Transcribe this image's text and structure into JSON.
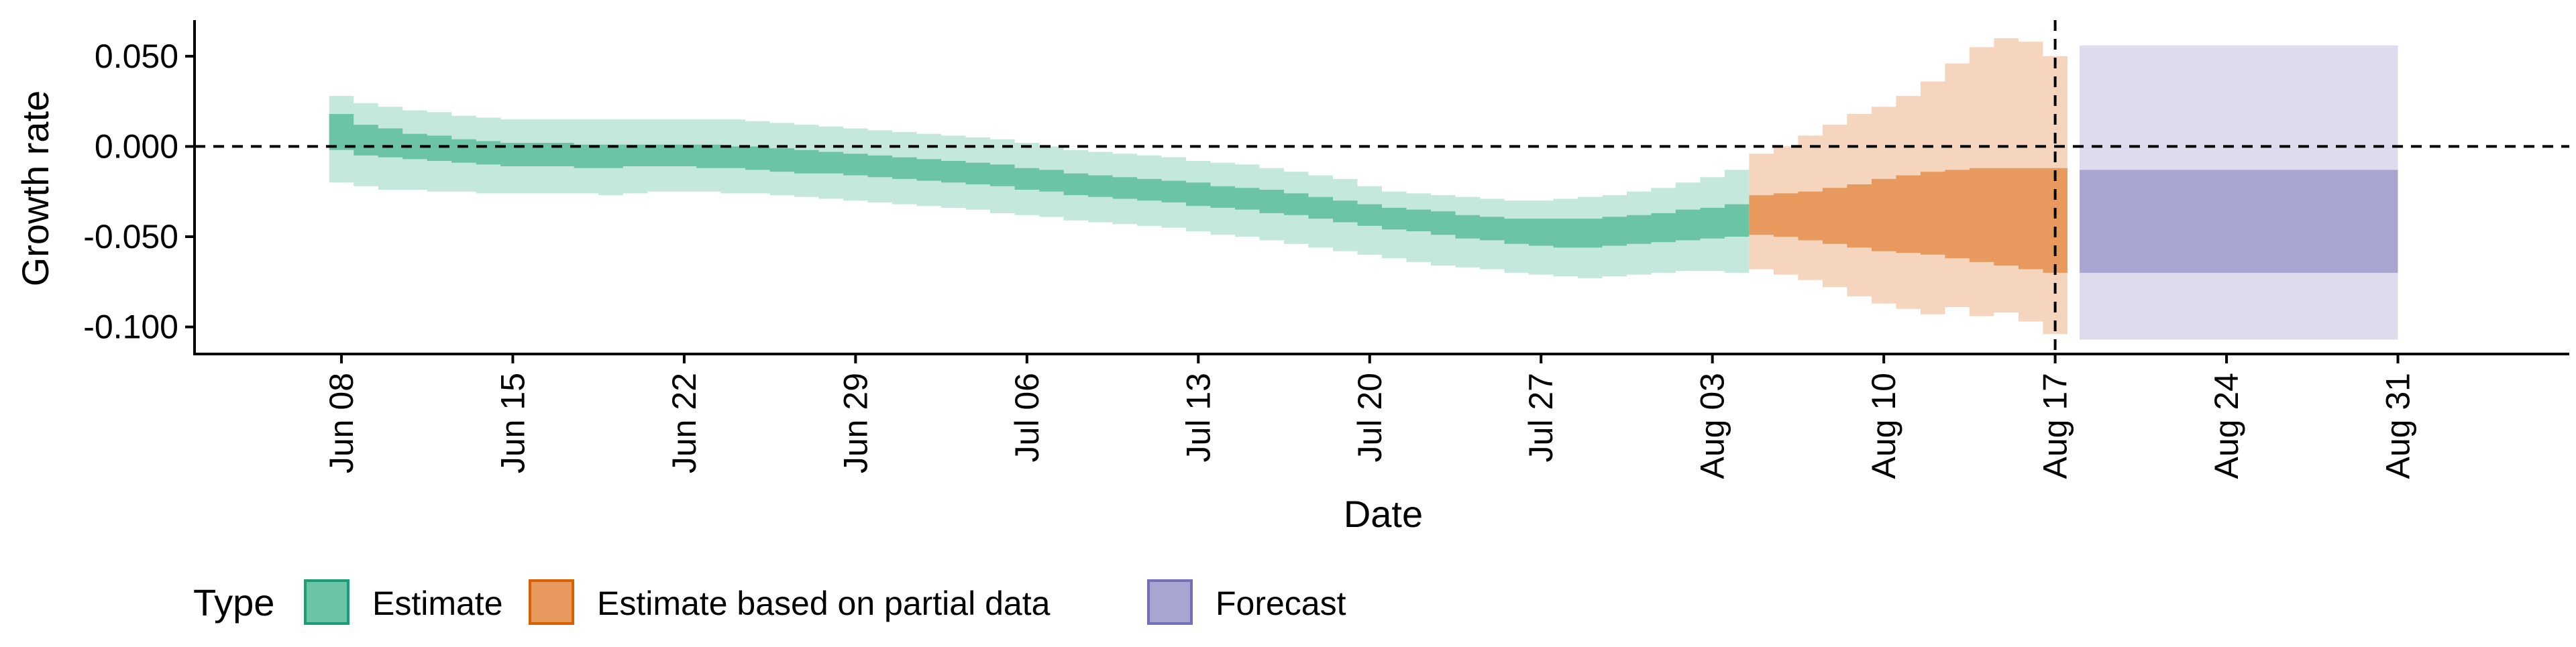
{
  "chart_data": {
    "type": "area",
    "title": "",
    "xlabel": "Date",
    "ylabel": "Growth rate",
    "x_range": [
      "2020-06-02",
      "2020-09-07"
    ],
    "ylim": [
      -0.115,
      0.07
    ],
    "y_ticks": [
      0.05,
      0.0,
      -0.05,
      -0.1
    ],
    "y_tick_labels": [
      "0.050",
      "0.000",
      "-0.050",
      "-0.100"
    ],
    "x_ticks": [
      "2020-06-08",
      "2020-06-15",
      "2020-06-22",
      "2020-06-29",
      "2020-07-06",
      "2020-07-13",
      "2020-07-20",
      "2020-07-27",
      "2020-08-03",
      "2020-08-10",
      "2020-08-17",
      "2020-08-24",
      "2020-08-31"
    ],
    "x_tick_labels": [
      "Jun 08",
      "Jun 15",
      "Jun 22",
      "Jun 29",
      "Jul 06",
      "Jul 13",
      "Jul 20",
      "Jul 27",
      "Aug 03",
      "Aug 10",
      "Aug 17",
      "Aug 24",
      "Aug 31"
    ],
    "reference_lines": {
      "horizontal_y": 0.0,
      "vertical_date": "2020-08-17"
    },
    "grid": false,
    "legend": {
      "title": "Type",
      "position": "bottom-left",
      "entries": [
        {
          "label": "Estimate",
          "color": "#66c2a5",
          "fill": "#6cc4a6",
          "border": "#1b9e77"
        },
        {
          "label": "Estimate based on partial data",
          "color": "#e89a5e",
          "fill": "#e89a5e",
          "border": "#d95f02"
        },
        {
          "label": "Forecast",
          "color": "#a8a5d0",
          "fill": "#a8a5d0",
          "border": "#7570b3"
        }
      ]
    },
    "series": [
      {
        "name": "Estimate",
        "color_dark": "#6cc4a6",
        "color_light": "#c4e8dc",
        "points": [
          {
            "x": "2020-06-08",
            "lo90": -0.02,
            "lo50": -0.002,
            "hi50": 0.018,
            "hi90": 0.028
          },
          {
            "x": "2020-06-09",
            "lo90": -0.022,
            "lo50": -0.005,
            "hi50": 0.012,
            "hi90": 0.024
          },
          {
            "x": "2020-06-10",
            "lo90": -0.024,
            "lo50": -0.006,
            "hi50": 0.01,
            "hi90": 0.022
          },
          {
            "x": "2020-06-11",
            "lo90": -0.024,
            "lo50": -0.007,
            "hi50": 0.007,
            "hi90": 0.02
          },
          {
            "x": "2020-06-12",
            "lo90": -0.025,
            "lo50": -0.008,
            "hi50": 0.006,
            "hi90": 0.019
          },
          {
            "x": "2020-06-13",
            "lo90": -0.025,
            "lo50": -0.009,
            "hi50": 0.004,
            "hi90": 0.017
          },
          {
            "x": "2020-06-14",
            "lo90": -0.026,
            "lo50": -0.01,
            "hi50": 0.003,
            "hi90": 0.016
          },
          {
            "x": "2020-06-15",
            "lo90": -0.026,
            "lo50": -0.011,
            "hi50": 0.002,
            "hi90": 0.015
          },
          {
            "x": "2020-06-16",
            "lo90": -0.026,
            "lo50": -0.011,
            "hi50": 0.002,
            "hi90": 0.015
          },
          {
            "x": "2020-06-17",
            "lo90": -0.026,
            "lo50": -0.011,
            "hi50": 0.002,
            "hi90": 0.015
          },
          {
            "x": "2020-06-18",
            "lo90": -0.026,
            "lo50": -0.012,
            "hi50": 0.001,
            "hi90": 0.015
          },
          {
            "x": "2020-06-19",
            "lo90": -0.027,
            "lo50": -0.012,
            "hi50": 0.001,
            "hi90": 0.015
          },
          {
            "x": "2020-06-20",
            "lo90": -0.026,
            "lo50": -0.011,
            "hi50": 0.001,
            "hi90": 0.015
          },
          {
            "x": "2020-06-21",
            "lo90": -0.025,
            "lo50": -0.011,
            "hi50": 0.001,
            "hi90": 0.015
          },
          {
            "x": "2020-06-22",
            "lo90": -0.025,
            "lo50": -0.011,
            "hi50": 0.001,
            "hi90": 0.015
          },
          {
            "x": "2020-06-23",
            "lo90": -0.025,
            "lo50": -0.012,
            "hi50": 0.001,
            "hi90": 0.015
          },
          {
            "x": "2020-06-24",
            "lo90": -0.026,
            "lo50": -0.012,
            "hi50": 0.0,
            "hi90": 0.015
          },
          {
            "x": "2020-06-25",
            "lo90": -0.026,
            "lo50": -0.013,
            "hi50": 0.0,
            "hi90": 0.014
          },
          {
            "x": "2020-06-26",
            "lo90": -0.027,
            "lo50": -0.014,
            "hi50": -0.001,
            "hi90": 0.013
          },
          {
            "x": "2020-06-27",
            "lo90": -0.028,
            "lo50": -0.015,
            "hi50": -0.002,
            "hi90": 0.012
          },
          {
            "x": "2020-06-28",
            "lo90": -0.029,
            "lo50": -0.015,
            "hi50": -0.003,
            "hi90": 0.011
          },
          {
            "x": "2020-06-29",
            "lo90": -0.03,
            "lo50": -0.016,
            "hi50": -0.004,
            "hi90": 0.01
          },
          {
            "x": "2020-06-30",
            "lo90": -0.031,
            "lo50": -0.017,
            "hi50": -0.005,
            "hi90": 0.009
          },
          {
            "x": "2020-07-01",
            "lo90": -0.032,
            "lo50": -0.018,
            "hi50": -0.006,
            "hi90": 0.008
          },
          {
            "x": "2020-07-02",
            "lo90": -0.033,
            "lo50": -0.019,
            "hi50": -0.007,
            "hi90": 0.007
          },
          {
            "x": "2020-07-03",
            "lo90": -0.034,
            "lo50": -0.02,
            "hi50": -0.008,
            "hi90": 0.006
          },
          {
            "x": "2020-07-04",
            "lo90": -0.035,
            "lo50": -0.021,
            "hi50": -0.009,
            "hi90": 0.005
          },
          {
            "x": "2020-07-05",
            "lo90": -0.037,
            "lo50": -0.022,
            "hi50": -0.01,
            "hi90": 0.004
          },
          {
            "x": "2020-07-06",
            "lo90": -0.038,
            "lo50": -0.024,
            "hi50": -0.012,
            "hi90": 0.002
          },
          {
            "x": "2020-07-07",
            "lo90": -0.039,
            "lo50": -0.025,
            "hi50": -0.013,
            "hi90": 0.0
          },
          {
            "x": "2020-07-08",
            "lo90": -0.041,
            "lo50": -0.027,
            "hi50": -0.015,
            "hi90": -0.002
          },
          {
            "x": "2020-07-09",
            "lo90": -0.042,
            "lo50": -0.028,
            "hi50": -0.016,
            "hi90": -0.003
          },
          {
            "x": "2020-07-10",
            "lo90": -0.043,
            "lo50": -0.029,
            "hi50": -0.017,
            "hi90": -0.004
          },
          {
            "x": "2020-07-11",
            "lo90": -0.044,
            "lo50": -0.03,
            "hi50": -0.018,
            "hi90": -0.005
          },
          {
            "x": "2020-07-12",
            "lo90": -0.045,
            "lo50": -0.031,
            "hi50": -0.019,
            "hi90": -0.006
          },
          {
            "x": "2020-07-13",
            "lo90": -0.047,
            "lo50": -0.033,
            "hi50": -0.02,
            "hi90": -0.008
          },
          {
            "x": "2020-07-14",
            "lo90": -0.049,
            "lo50": -0.034,
            "hi50": -0.022,
            "hi90": -0.009
          },
          {
            "x": "2020-07-15",
            "lo90": -0.05,
            "lo50": -0.035,
            "hi50": -0.023,
            "hi90": -0.01
          },
          {
            "x": "2020-07-16",
            "lo90": -0.052,
            "lo50": -0.037,
            "hi50": -0.024,
            "hi90": -0.012
          },
          {
            "x": "2020-07-17",
            "lo90": -0.054,
            "lo50": -0.038,
            "hi50": -0.026,
            "hi90": -0.014
          },
          {
            "x": "2020-07-18",
            "lo90": -0.056,
            "lo50": -0.04,
            "hi50": -0.028,
            "hi90": -0.016
          },
          {
            "x": "2020-07-19",
            "lo90": -0.058,
            "lo50": -0.042,
            "hi50": -0.03,
            "hi90": -0.018
          },
          {
            "x": "2020-07-20",
            "lo90": -0.06,
            "lo50": -0.044,
            "hi50": -0.032,
            "hi90": -0.022
          },
          {
            "x": "2020-07-21",
            "lo90": -0.062,
            "lo50": -0.046,
            "hi50": -0.034,
            "hi90": -0.025
          },
          {
            "x": "2020-07-22",
            "lo90": -0.064,
            "lo50": -0.047,
            "hi50": -0.035,
            "hi90": -0.026
          },
          {
            "x": "2020-07-23",
            "lo90": -0.066,
            "lo50": -0.049,
            "hi50": -0.036,
            "hi90": -0.027
          },
          {
            "x": "2020-07-24",
            "lo90": -0.067,
            "lo50": -0.051,
            "hi50": -0.038,
            "hi90": -0.028
          },
          {
            "x": "2020-07-25",
            "lo90": -0.068,
            "lo50": -0.052,
            "hi50": -0.039,
            "hi90": -0.029
          },
          {
            "x": "2020-07-26",
            "lo90": -0.07,
            "lo50": -0.054,
            "hi50": -0.04,
            "hi90": -0.03
          },
          {
            "x": "2020-07-27",
            "lo90": -0.071,
            "lo50": -0.055,
            "hi50": -0.04,
            "hi90": -0.03
          },
          {
            "x": "2020-07-28",
            "lo90": -0.072,
            "lo50": -0.056,
            "hi50": -0.04,
            "hi90": -0.029
          },
          {
            "x": "2020-07-29",
            "lo90": -0.073,
            "lo50": -0.056,
            "hi50": -0.04,
            "hi90": -0.028
          },
          {
            "x": "2020-07-30",
            "lo90": -0.072,
            "lo50": -0.055,
            "hi50": -0.039,
            "hi90": -0.027
          },
          {
            "x": "2020-07-31",
            "lo90": -0.071,
            "lo50": -0.054,
            "hi50": -0.038,
            "hi90": -0.025
          },
          {
            "x": "2020-08-01",
            "lo90": -0.07,
            "lo50": -0.053,
            "hi50": -0.037,
            "hi90": -0.023
          },
          {
            "x": "2020-08-02",
            "lo90": -0.069,
            "lo50": -0.052,
            "hi50": -0.035,
            "hi90": -0.02
          },
          {
            "x": "2020-08-03",
            "lo90": -0.069,
            "lo50": -0.051,
            "hi50": -0.034,
            "hi90": -0.017
          },
          {
            "x": "2020-08-04",
            "lo90": -0.07,
            "lo50": -0.05,
            "hi50": -0.032,
            "hi90": -0.013
          }
        ]
      },
      {
        "name": "Estimate based on partial data",
        "color_dark": "#e89a5e",
        "color_light": "#f5d5bd",
        "points": [
          {
            "x": "2020-08-05",
            "lo90": -0.068,
            "lo50": -0.049,
            "hi50": -0.027,
            "hi90": -0.004
          },
          {
            "x": "2020-08-06",
            "lo90": -0.071,
            "lo50": -0.05,
            "hi50": -0.026,
            "hi90": 0.0
          },
          {
            "x": "2020-08-07",
            "lo90": -0.074,
            "lo50": -0.052,
            "hi50": -0.025,
            "hi90": 0.006
          },
          {
            "x": "2020-08-08",
            "lo90": -0.078,
            "lo50": -0.054,
            "hi50": -0.023,
            "hi90": 0.012
          },
          {
            "x": "2020-08-09",
            "lo90": -0.083,
            "lo50": -0.056,
            "hi50": -0.021,
            "hi90": 0.018
          },
          {
            "x": "2020-08-10",
            "lo90": -0.087,
            "lo50": -0.058,
            "hi50": -0.018,
            "hi90": 0.022
          },
          {
            "x": "2020-08-11",
            "lo90": -0.09,
            "lo50": -0.059,
            "hi50": -0.016,
            "hi90": 0.028
          },
          {
            "x": "2020-08-12",
            "lo90": -0.093,
            "lo50": -0.06,
            "hi50": -0.014,
            "hi90": 0.036
          },
          {
            "x": "2020-08-13",
            "lo90": -0.089,
            "lo50": -0.062,
            "hi50": -0.013,
            "hi90": 0.046
          },
          {
            "x": "2020-08-14",
            "lo90": -0.094,
            "lo50": -0.064,
            "hi50": -0.012,
            "hi90": 0.055
          },
          {
            "x": "2020-08-15",
            "lo90": -0.092,
            "lo50": -0.066,
            "hi50": -0.012,
            "hi90": 0.06
          },
          {
            "x": "2020-08-16",
            "lo90": -0.097,
            "lo50": -0.068,
            "hi50": -0.012,
            "hi90": 0.058
          },
          {
            "x": "2020-08-17",
            "lo90": -0.104,
            "lo50": -0.07,
            "hi50": -0.012,
            "hi90": 0.05
          }
        ]
      },
      {
        "name": "Forecast",
        "color_dark": "#a8a5d0",
        "color_light": "#dddcec",
        "points": [
          {
            "x": "2020-08-18",
            "lo90": -0.107,
            "lo50": -0.07,
            "hi50": -0.013,
            "hi90": 0.056
          },
          {
            "x": "2020-08-31",
            "lo90": -0.107,
            "lo50": -0.07,
            "hi50": -0.013,
            "hi90": 0.056
          }
        ]
      }
    ]
  }
}
